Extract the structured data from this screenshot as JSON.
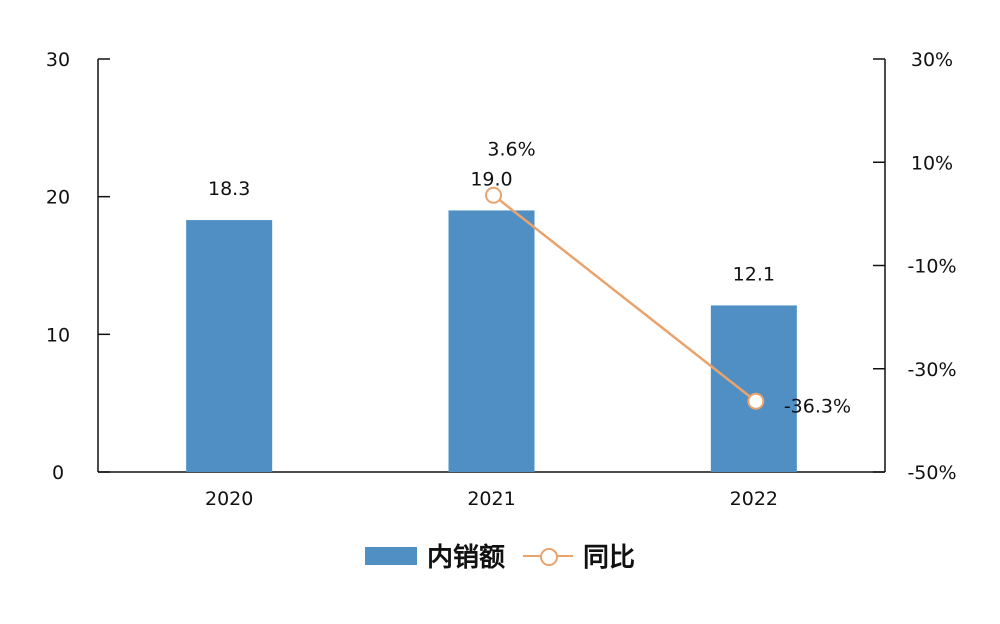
{
  "chart_data": {
    "type": "bar",
    "categories": [
      "2020",
      "2021",
      "2022"
    ],
    "series": [
      {
        "name": "内销额",
        "type": "bar",
        "axis": "left",
        "values": [
          18.3,
          19.0,
          12.1
        ],
        "labels": [
          "18.3",
          "19.0",
          "12.1"
        ],
        "color": "#4f8fc4"
      },
      {
        "name": "同比",
        "type": "line",
        "axis": "right",
        "values": [
          null,
          3.6,
          -36.3
        ],
        "labels": [
          "",
          "3.6%",
          "-36.3%"
        ],
        "color": "#e9a36d"
      }
    ],
    "y_left": {
      "ylim": [
        0,
        30
      ],
      "ticks": [
        0,
        10,
        20,
        30
      ],
      "tick_labels": [
        "0",
        "10",
        "20",
        "30"
      ]
    },
    "y_right": {
      "ylim": [
        -50,
        30
      ],
      "ticks": [
        -50,
        -30,
        -10,
        10,
        30
      ],
      "tick_labels": [
        "-50%",
        "-30%",
        "-10%",
        "10%",
        "30%"
      ]
    },
    "grid": false,
    "legend": "bottom-center"
  }
}
